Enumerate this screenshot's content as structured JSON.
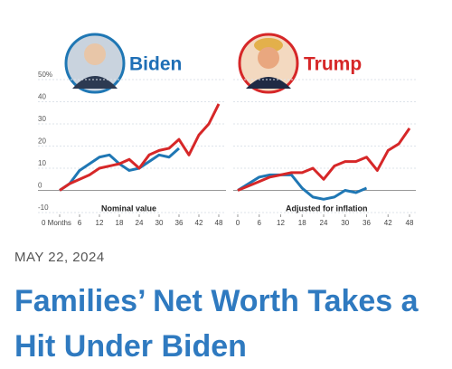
{
  "chart_data": [
    {
      "type": "line",
      "subtitle": "Nominal value",
      "x": [
        0,
        3,
        6,
        9,
        12,
        15,
        18,
        21,
        24,
        27,
        30,
        33,
        36,
        39,
        42,
        45,
        48
      ],
      "xlim": [
        0,
        48
      ],
      "xticks": [
        {
          "value": 0,
          "label": "0 Months"
        },
        6,
        12,
        18,
        24,
        30,
        36,
        42,
        48
      ],
      "ylim": [
        -10,
        50
      ],
      "yticks": [
        {
          "value": 50,
          "label": "50%"
        },
        40,
        30,
        20,
        10,
        0,
        -10
      ],
      "grid": true,
      "series": [
        {
          "name": "Biden",
          "color": "#1f77b4",
          "values": [
            0,
            3,
            9,
            12,
            15,
            16,
            12,
            9,
            10,
            13,
            16,
            15,
            19,
            null,
            null,
            null,
            null
          ]
        },
        {
          "name": "Trump",
          "color": "#d62728",
          "values": [
            0,
            3,
            5,
            7,
            10,
            11,
            12,
            14,
            10,
            16,
            18,
            19,
            23,
            16,
            25,
            30,
            39
          ]
        }
      ]
    },
    {
      "type": "line",
      "subtitle": "Adjusted for inflation",
      "x": [
        0,
        3,
        6,
        9,
        12,
        15,
        18,
        21,
        24,
        27,
        30,
        33,
        36,
        39,
        42,
        45,
        48
      ],
      "xlim": [
        0,
        48
      ],
      "xticks": [
        0,
        6,
        12,
        18,
        24,
        30,
        36,
        42,
        48
      ],
      "ylim": [
        -10,
        50
      ],
      "grid": true,
      "series": [
        {
          "name": "Biden",
          "color": "#1f77b4",
          "values": [
            0,
            3,
            6,
            7,
            7,
            7,
            1,
            -3,
            -4,
            -3,
            0,
            -1,
            1,
            null,
            null,
            null,
            null
          ]
        },
        {
          "name": "Trump",
          "color": "#d62728",
          "values": [
            0,
            2,
            4,
            6,
            7,
            8,
            8,
            10,
            5,
            11,
            13,
            13,
            15,
            9,
            18,
            21,
            28
          ]
        }
      ]
    }
  ],
  "article": {
    "date": "MAY 22, 2024",
    "headline": "Families’ Net Worth Takes a Hit Under Biden"
  }
}
